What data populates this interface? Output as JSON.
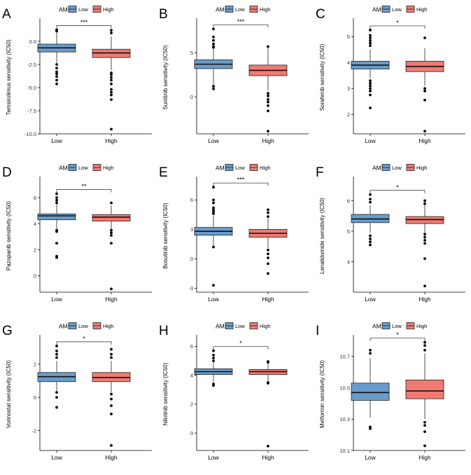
{
  "figure": {
    "legend_title": "AMS"
  },
  "colors": {
    "low": "#6A9CCB",
    "high": "#F07A72",
    "axis": "#000000",
    "point": "#000000"
  },
  "chart_data": [
    {
      "panel": "A",
      "type": "box",
      "categories": [
        "Low",
        "High"
      ],
      "ylabel": "Temsirolimus sensitivity (IC50)",
      "significance": "***",
      "legend": {
        "title": "AMS",
        "entries": [
          "Low",
          "High"
        ]
      },
      "ylim": [
        -10,
        2.2
      ],
      "yticks": [
        0,
        -2.5,
        -5,
        -7.5,
        -10
      ],
      "yticklabels": [
        "0.0",
        "-2.5",
        "-5.0",
        "-7.5",
        "-10.0"
      ],
      "boxes": [
        {
          "group": "Low",
          "q1": -1.15,
          "median": -0.7,
          "q3": -0.3,
          "whisker_low": -2.3,
          "whisker_high": 0.95,
          "outliers": [
            1.25,
            1.1,
            -2.5,
            -2.9,
            -3.3,
            -3.5,
            -3.8,
            -4.2,
            -4.6
          ]
        },
        {
          "group": "High",
          "q1": -1.75,
          "median": -1.25,
          "q3": -0.85,
          "whisker_low": -3.1,
          "whisker_high": 0.5,
          "outliers": [
            1.2,
            0.9,
            -3.4,
            -3.6,
            -3.9,
            -4.2,
            -4.6,
            -5.2,
            -5.5,
            -5.8,
            -6.3,
            -9.5
          ]
        }
      ]
    },
    {
      "panel": "B",
      "type": "box",
      "categories": [
        "Low",
        "High"
      ],
      "ylabel": "Sunitinib sensitivity (IC50)",
      "significance": "***",
      "legend": {
        "title": "AMS",
        "entries": [
          "Low",
          "High"
        ]
      },
      "ylim": [
        -4.2,
        8.6
      ],
      "yticks": [
        0,
        5
      ],
      "yticklabels": [
        "0",
        "5"
      ],
      "boxes": [
        {
          "group": "Low",
          "q1": 3.2,
          "median": 3.7,
          "q3": 4.2,
          "whisker_low": 1.4,
          "whisker_high": 5.4,
          "outliers": [
            7.7,
            6.8,
            6.4,
            6.0,
            5.7,
            5.6,
            1.2,
            0.9
          ]
        },
        {
          "group": "High",
          "q1": 2.4,
          "median": 3.0,
          "q3": 3.6,
          "whisker_low": 0.7,
          "whisker_high": 5.5,
          "outliers": [
            5.7,
            0.4,
            0.1,
            -0.3,
            -0.6,
            -1.0,
            -1.6,
            -3.9
          ]
        }
      ]
    },
    {
      "panel": "C",
      "type": "box",
      "categories": [
        "Low",
        "High"
      ],
      "ylabel": "Sorafenib sensitivity (IC50)",
      "significance": "*",
      "legend": {
        "title": "AMS",
        "entries": [
          "Low",
          "High"
        ]
      },
      "ylim": [
        1.25,
        5.6
      ],
      "yticks": [
        2,
        3,
        4,
        5
      ],
      "yticklabels": [
        "2",
        "3",
        "4",
        "5"
      ],
      "boxes": [
        {
          "group": "Low",
          "q1": 3.75,
          "median": 3.9,
          "q3": 4.05,
          "whisker_low": 3.4,
          "whisker_high": 4.5,
          "outliers": [
            5.25,
            5.05,
            4.95,
            4.85,
            4.75,
            4.65,
            3.3,
            3.2,
            3.1,
            3.0,
            2.9,
            2.75,
            2.25
          ]
        },
        {
          "group": "High",
          "q1": 3.65,
          "median": 3.85,
          "q3": 4.05,
          "whisker_low": 3.1,
          "whisker_high": 4.55,
          "outliers": [
            4.95,
            3.0,
            2.9,
            2.55,
            1.35
          ]
        }
      ]
    },
    {
      "panel": "D",
      "type": "box",
      "categories": [
        "Low",
        "High"
      ],
      "ylabel": "Pazopanib sensitivity (IC50)",
      "significance": "**",
      "legend": {
        "title": "AMS",
        "entries": [
          "Low",
          "High"
        ]
      },
      "ylim": [
        -1.25,
        7.4
      ],
      "yticks": [
        0,
        2,
        4,
        6
      ],
      "yticklabels": [
        "0",
        "2",
        "4",
        "6"
      ],
      "boxes": [
        {
          "group": "Low",
          "q1": 4.3,
          "median": 4.6,
          "q3": 4.75,
          "whisker_low": 3.6,
          "whisker_high": 5.5,
          "outliers": [
            6.3,
            6.0,
            5.8,
            5.6,
            3.5,
            3.4,
            2.5,
            1.5,
            1.4
          ]
        },
        {
          "group": "High",
          "q1": 4.2,
          "median": 4.5,
          "q3": 4.7,
          "whisker_low": 3.6,
          "whisker_high": 5.4,
          "outliers": [
            5.6,
            3.5,
            3.3,
            3.1,
            2.5,
            -1.0
          ]
        }
      ]
    },
    {
      "panel": "E",
      "type": "box",
      "categories": [
        "Low",
        "High"
      ],
      "ylabel": "Bosutinib sensitivity (IC50)",
      "significance": "***",
      "legend": {
        "title": "AMS",
        "entries": [
          "Low",
          "High"
        ]
      },
      "ylim": [
        -3.4,
        8.1
      ],
      "yticks": [
        -3,
        0,
        3,
        6
      ],
      "yticklabels": [
        "-3",
        "0",
        "3",
        "6"
      ],
      "boxes": [
        {
          "group": "Low",
          "q1": 2.4,
          "median": 2.8,
          "q3": 3.2,
          "whisker_low": 1.3,
          "whisker_high": 4.4,
          "outliers": [
            7.3,
            6.0,
            5.7,
            5.2,
            5.0,
            4.8,
            4.6,
            1.2,
            -2.7
          ]
        },
        {
          "group": "High",
          "q1": 2.2,
          "median": 2.6,
          "q3": 3.0,
          "whisker_low": 1.1,
          "whisker_high": 4.1,
          "outliers": [
            5.0,
            4.7,
            4.3,
            0.9,
            0.5,
            0.1,
            -0.5,
            -1.5
          ]
        }
      ]
    },
    {
      "panel": "F",
      "type": "box",
      "categories": [
        "Low",
        "High"
      ],
      "ylabel": "Lenalidomide sensitivity (IC50)",
      "significance": "*",
      "legend": {
        "title": "AMS",
        "entries": [
          "Low",
          "High"
        ]
      },
      "ylim": [
        3.0,
        6.7
      ],
      "yticks": [
        4,
        5,
        6
      ],
      "yticklabels": [
        "4",
        "5",
        "6"
      ],
      "boxes": [
        {
          "group": "Low",
          "q1": 5.28,
          "median": 5.4,
          "q3": 5.55,
          "whisker_low": 4.95,
          "whisker_high": 5.85,
          "outliers": [
            6.2,
            6.05,
            5.95,
            4.85,
            4.75,
            4.65,
            4.55
          ]
        },
        {
          "group": "High",
          "q1": 5.25,
          "median": 5.38,
          "q3": 5.48,
          "whisker_low": 4.95,
          "whisker_high": 5.85,
          "outliers": [
            6.0,
            5.9,
            4.9,
            4.8,
            4.7,
            4.6,
            4.1,
            3.2
          ]
        }
      ]
    },
    {
      "panel": "G",
      "type": "box",
      "categories": [
        "Low",
        "High"
      ],
      "ylabel": "Vorinostat sensitivity (IC50)",
      "significance": "*",
      "legend": {
        "title": "AMS",
        "entries": [
          "Low",
          "High"
        ]
      },
      "ylim": [
        -3.2,
        3.6
      ],
      "yticks": [
        -2,
        0,
        2
      ],
      "yticklabels": [
        "-2",
        "0",
        "2"
      ],
      "boxes": [
        {
          "group": "Low",
          "q1": 0.95,
          "median": 1.25,
          "q3": 1.5,
          "whisker_low": 0.4,
          "whisker_high": 2.2,
          "outliers": [
            3.1,
            2.8,
            2.6,
            2.4,
            0.3,
            0.0,
            -0.6
          ]
        },
        {
          "group": "High",
          "q1": 0.95,
          "median": 1.2,
          "q3": 1.5,
          "whisker_low": 0.3,
          "whisker_high": 2.2,
          "outliers": [
            2.9,
            2.6,
            2.4,
            0.2,
            -0.1,
            -0.5,
            -1.0,
            -2.9
          ]
        }
      ]
    },
    {
      "panel": "H",
      "type": "box",
      "categories": [
        "Low",
        "High"
      ],
      "ylabel": "Nilotinib sensitivity (IC50)",
      "significance": "*",
      "legend": {
        "title": "AMS",
        "entries": [
          "Low",
          "High"
        ]
      },
      "ylim": [
        -1.2,
        6.6
      ],
      "yticks": [
        0,
        2,
        4,
        6
      ],
      "yticklabels": [
        "0",
        "2",
        "4",
        "6"
      ],
      "boxes": [
        {
          "group": "Low",
          "q1": 4.05,
          "median": 4.25,
          "q3": 4.45,
          "whisker_low": 3.55,
          "whisker_high": 4.9,
          "outliers": [
            5.7,
            5.4,
            5.2,
            5.0,
            3.4,
            3.3
          ]
        },
        {
          "group": "High",
          "q1": 4.05,
          "median": 4.25,
          "q3": 4.4,
          "whisker_low": 3.6,
          "whisker_high": 4.8,
          "outliers": [
            4.95,
            4.9,
            3.5,
            3.45,
            -0.9
          ]
        }
      ]
    },
    {
      "panel": "I",
      "type": "box",
      "categories": [
        "Low",
        "High"
      ],
      "ylabel": "Metformin sensitivity (IC50)",
      "significance": "*",
      "legend": {
        "title": "AMS",
        "entries": [
          "Low",
          "High"
        ]
      },
      "ylim": [
        10.1,
        10.82
      ],
      "yticks": [
        10.1,
        10.3,
        10.5,
        10.7
      ],
      "yticklabels": [
        "10.1",
        "10.3",
        "10.5",
        "10.7"
      ],
      "boxes": [
        {
          "group": "Low",
          "q1": 10.42,
          "median": 10.47,
          "q3": 10.53,
          "whisker_low": 10.31,
          "whisker_high": 10.69,
          "outliers": [
            10.74,
            10.72,
            10.25,
            10.24
          ]
        },
        {
          "group": "High",
          "q1": 10.43,
          "median": 10.48,
          "q3": 10.55,
          "whisker_low": 10.3,
          "whisker_high": 10.72,
          "outliers": [
            10.79,
            10.77,
            10.74,
            10.28,
            10.26,
            10.22,
            10.13
          ]
        }
      ]
    }
  ]
}
